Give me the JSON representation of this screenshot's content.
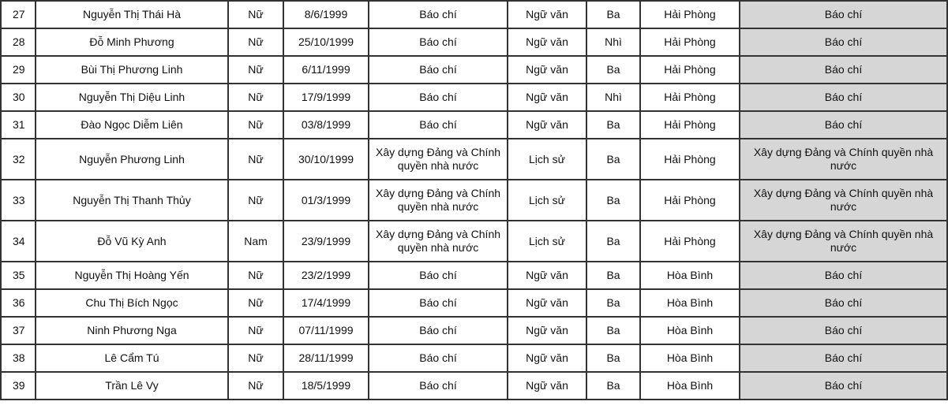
{
  "table": {
    "rows": [
      [
        "27",
        "Nguyễn Thị Thái Hà",
        "Nữ",
        "8/6/1999",
        "Báo chí",
        "Ngữ văn",
        "Ba",
        "Hải Phòng",
        "Báo chí"
      ],
      [
        "28",
        "Đỗ Minh Phương",
        "Nữ",
        "25/10/1999",
        "Báo chí",
        "Ngữ văn",
        "Nhì",
        "Hải Phòng",
        "Báo chí"
      ],
      [
        "29",
        "Bùi Thị Phương Linh",
        "Nữ",
        "6/11/1999",
        "Báo chí",
        "Ngữ văn",
        "Ba",
        "Hải Phòng",
        "Báo chí"
      ],
      [
        "30",
        "Nguyễn Thị Diệu Linh",
        "Nữ",
        "17/9/1999",
        "Báo chí",
        "Ngữ văn",
        "Nhì",
        "Hải Phòng",
        "Báo chí"
      ],
      [
        "31",
        "Đào Ngọc Diễm Liên",
        "Nữ",
        "03/8/1999",
        "Báo chí",
        "Ngữ văn",
        "Ba",
        "Hải Phòng",
        "Báo chí"
      ],
      [
        "32",
        "Nguyễn Phương Linh",
        "Nữ",
        "30/10/1999",
        "Xây dựng Đảng và Chính quyền nhà nước",
        "Lịch sử",
        "Ba",
        "Hải Phòng",
        "Xây dựng Đảng và Chính quyền nhà nước"
      ],
      [
        "33",
        "Nguyễn Thị Thanh Thủy",
        "Nữ",
        "01/3/1999",
        "Xây dựng Đảng và Chính quyền nhà nước",
        "Lịch sử",
        "Ba",
        "Hải Phòng",
        "Xây dựng Đảng và Chính quyền nhà nước"
      ],
      [
        "34",
        "Đỗ Vũ Kỳ Anh",
        "Nam",
        "23/9/1999",
        "Xây dựng Đảng và Chính quyền nhà nước",
        "Lịch sử",
        "Ba",
        "Hải Phòng",
        "Xây dựng Đảng và Chính quyền nhà nước"
      ],
      [
        "35",
        "Nguyễn Thị Hoàng Yến",
        "Nữ",
        "23/2/1999",
        "Báo chí",
        "Ngữ văn",
        "Ba",
        "Hòa Bình",
        "Báo chí"
      ],
      [
        "36",
        "Chu Thị Bích Ngọc",
        "Nữ",
        "17/4/1999",
        "Báo chí",
        "Ngữ văn",
        "Ba",
        "Hòa Bình",
        "Báo chí"
      ],
      [
        "37",
        "Ninh Phương Nga",
        "Nữ",
        "07/11/1999",
        "Báo chí",
        "Ngữ văn",
        "Ba",
        "Hòa Bình",
        "Báo chí"
      ],
      [
        "38",
        "Lê Cẩm Tú",
        "Nữ",
        "28/11/1999",
        "Báo chí",
        "Ngữ văn",
        "Ba",
        "Hòa Bình",
        "Báo chí"
      ],
      [
        "39",
        "Trần Lê Vy",
        "Nữ",
        "18/5/1999",
        "Báo chí",
        "Ngữ văn",
        "Ba",
        "Hòa Bình",
        "Báo chí"
      ]
    ]
  },
  "colors": {
    "highlight_column": "#d6d6d6",
    "border": "#333333"
  }
}
